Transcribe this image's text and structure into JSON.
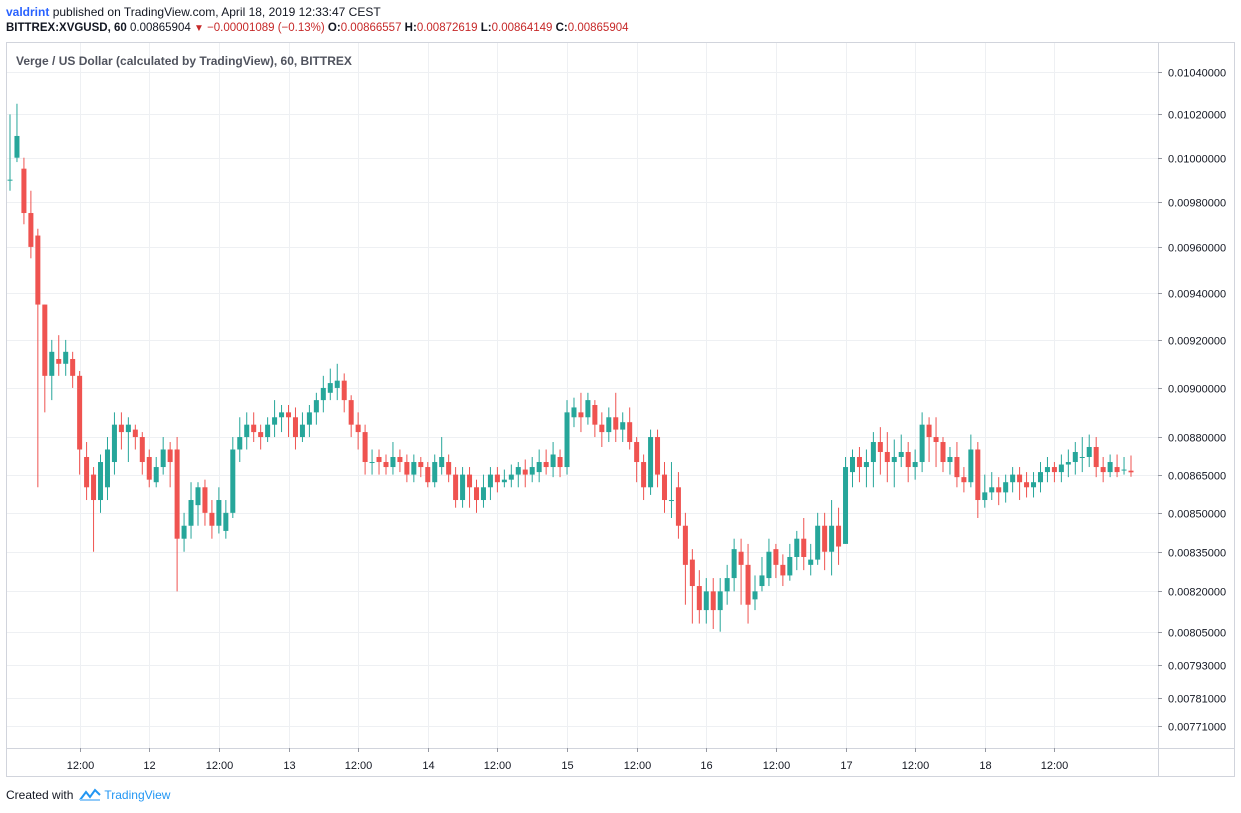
{
  "header": {
    "author": "valdrint",
    "published_text": "published on TradingView.com, April 18, 2019 12:33:47 CEST",
    "symbol": "BITTREX:XVGUSD, 60",
    "last_price": "0.00865904",
    "change": "−0.00001089 (−0.13%)",
    "open_label": "O:",
    "open": "0.00866557",
    "high_label": "H:",
    "high": "0.00872619",
    "low_label": "L:",
    "low": "0.00864149",
    "close_label": "C:",
    "close": "0.00865904"
  },
  "chart_title": "Verge / US Dollar (calculated by TradingView), 60, BITTREX",
  "footer": {
    "created_with": "Created with",
    "brand": "TradingView"
  },
  "colors": {
    "up": "#26a69a",
    "down": "#ef5350",
    "grid": "#eef0f3",
    "axis": "#9598a1"
  },
  "chart_data": {
    "type": "candlestick",
    "y_scale": "log",
    "y_ticks": [
      "0.01040000",
      "0.01020000",
      "0.01000000",
      "0.00980000",
      "0.00960000",
      "0.00940000",
      "0.00920000",
      "0.00900000",
      "0.00880000",
      "0.00865000",
      "0.00850000",
      "0.00835000",
      "0.00820000",
      "0.00805000",
      "0.00793000",
      "0.00781000",
      "0.00771000"
    ],
    "x_ticks": [
      "12:00",
      "12",
      "12:00",
      "13",
      "12:00",
      "14",
      "12:00",
      "15",
      "12:00",
      "16",
      "12:00",
      "17",
      "12:00",
      "18",
      "12:00"
    ],
    "x_tick_index": [
      10,
      20,
      30,
      40,
      50,
      60,
      70,
      80,
      90,
      100,
      110,
      120,
      130,
      140,
      150
    ],
    "candles": [
      [
        0.0099,
        0.0099,
        0.0102,
        0.00985
      ],
      [
        0.01,
        0.0101,
        0.01025,
        0.00998
      ],
      [
        0.00995,
        0.00975,
        0.01,
        0.0097
      ],
      [
        0.00975,
        0.0096,
        0.00985,
        0.00955
      ],
      [
        0.00965,
        0.00935,
        0.00968,
        0.0086
      ],
      [
        0.00935,
        0.00905,
        0.00935,
        0.0089
      ],
      [
        0.00905,
        0.00915,
        0.0092,
        0.00895
      ],
      [
        0.00912,
        0.0091,
        0.00922,
        0.00905
      ],
      [
        0.0091,
        0.00915,
        0.0092,
        0.00905
      ],
      [
        0.00912,
        0.00905,
        0.00915,
        0.009
      ],
      [
        0.00905,
        0.00875,
        0.00907,
        0.00865
      ],
      [
        0.00872,
        0.0086,
        0.00878,
        0.00855
      ],
      [
        0.00865,
        0.00855,
        0.00868,
        0.00835
      ],
      [
        0.00855,
        0.0087,
        0.00873,
        0.0085
      ],
      [
        0.0086,
        0.00875,
        0.0088,
        0.00855
      ],
      [
        0.0087,
        0.00885,
        0.0089,
        0.00865
      ],
      [
        0.00885,
        0.00882,
        0.0089,
        0.00875
      ],
      [
        0.00882,
        0.00885,
        0.00888,
        0.0087
      ],
      [
        0.00883,
        0.0088,
        0.00885,
        0.00875
      ],
      [
        0.0088,
        0.0087,
        0.00882,
        0.00865
      ],
      [
        0.00872,
        0.00863,
        0.00875,
        0.0086
      ],
      [
        0.00862,
        0.00868,
        0.00872,
        0.0086
      ],
      [
        0.00868,
        0.00875,
        0.0088,
        0.00865
      ],
      [
        0.00875,
        0.0087,
        0.00878,
        0.0086
      ],
      [
        0.00875,
        0.0084,
        0.0088,
        0.0082
      ],
      [
        0.0084,
        0.00845,
        0.0085,
        0.00835
      ],
      [
        0.00845,
        0.00855,
        0.00862,
        0.0084
      ],
      [
        0.00853,
        0.0086,
        0.00862,
        0.00845
      ],
      [
        0.0086,
        0.0085,
        0.00863,
        0.00845
      ],
      [
        0.0085,
        0.00845,
        0.00855,
        0.0084
      ],
      [
        0.00845,
        0.00855,
        0.0086,
        0.00842
      ],
      [
        0.00843,
        0.0085,
        0.00855,
        0.0084
      ],
      [
        0.0085,
        0.00875,
        0.0088,
        0.00848
      ],
      [
        0.00875,
        0.0088,
        0.00888,
        0.0087
      ],
      [
        0.0088,
        0.00885,
        0.0089,
        0.00875
      ],
      [
        0.00885,
        0.00882,
        0.0089,
        0.00878
      ],
      [
        0.00882,
        0.0088,
        0.00885,
        0.00875
      ],
      [
        0.0088,
        0.00885,
        0.00888,
        0.00878
      ],
      [
        0.00885,
        0.00888,
        0.00895,
        0.0088
      ],
      [
        0.00888,
        0.0089,
        0.00893,
        0.00882
      ],
      [
        0.0089,
        0.00888,
        0.00893,
        0.0088
      ],
      [
        0.00888,
        0.0088,
        0.00892,
        0.00875
      ],
      [
        0.0088,
        0.00885,
        0.0089,
        0.00878
      ],
      [
        0.00885,
        0.0089,
        0.00893,
        0.0088
      ],
      [
        0.0089,
        0.00895,
        0.00898,
        0.00885
      ],
      [
        0.00895,
        0.009,
        0.00905,
        0.0089
      ],
      [
        0.00898,
        0.00902,
        0.00908,
        0.00895
      ],
      [
        0.009,
        0.00903,
        0.0091,
        0.00895
      ],
      [
        0.00903,
        0.00895,
        0.00906,
        0.0089
      ],
      [
        0.00895,
        0.00885,
        0.00897,
        0.0088
      ],
      [
        0.00885,
        0.00882,
        0.0089,
        0.00875
      ],
      [
        0.00882,
        0.0087,
        0.00885,
        0.00865
      ],
      [
        0.0087,
        0.0087,
        0.00875,
        0.00865
      ],
      [
        0.00872,
        0.0087,
        0.00875,
        0.00865
      ],
      [
        0.0087,
        0.00868,
        0.00873,
        0.00865
      ],
      [
        0.00868,
        0.00872,
        0.00878,
        0.00865
      ],
      [
        0.00872,
        0.0087,
        0.00875,
        0.00866
      ],
      [
        0.0087,
        0.00865,
        0.00873,
        0.00862
      ],
      [
        0.00865,
        0.0087,
        0.00873,
        0.00862
      ],
      [
        0.0087,
        0.00868,
        0.00872,
        0.00864
      ],
      [
        0.00868,
        0.00862,
        0.0087,
        0.0086
      ],
      [
        0.00862,
        0.0087,
        0.00873,
        0.0086
      ],
      [
        0.00868,
        0.00872,
        0.0088,
        0.00865
      ],
      [
        0.0087,
        0.00865,
        0.00873,
        0.00862
      ],
      [
        0.00865,
        0.00855,
        0.00868,
        0.00852
      ],
      [
        0.00855,
        0.00865,
        0.00868,
        0.00852
      ],
      [
        0.00865,
        0.0086,
        0.00868,
        0.00852
      ],
      [
        0.0086,
        0.00855,
        0.00863,
        0.0085
      ],
      [
        0.00855,
        0.0086,
        0.00865,
        0.00852
      ],
      [
        0.0086,
        0.00865,
        0.00868,
        0.00855
      ],
      [
        0.00865,
        0.00862,
        0.00868,
        0.00858
      ],
      [
        0.00862,
        0.00863,
        0.00867,
        0.0086
      ],
      [
        0.00863,
        0.00865,
        0.00869,
        0.0086
      ],
      [
        0.00865,
        0.00868,
        0.0087,
        0.0086
      ],
      [
        0.00867,
        0.00865,
        0.00871,
        0.0086
      ],
      [
        0.00865,
        0.00868,
        0.00872,
        0.00862
      ],
      [
        0.00866,
        0.0087,
        0.00875,
        0.00862
      ],
      [
        0.0087,
        0.00868,
        0.00875,
        0.00865
      ],
      [
        0.00868,
        0.00873,
        0.00878,
        0.00864
      ],
      [
        0.00872,
        0.00868,
        0.00875,
        0.00864
      ],
      [
        0.00868,
        0.0089,
        0.00895,
        0.00865
      ],
      [
        0.00888,
        0.00892,
        0.00896,
        0.00884
      ],
      [
        0.0089,
        0.00888,
        0.00898,
        0.00882
      ],
      [
        0.00888,
        0.00895,
        0.00898,
        0.00885
      ],
      [
        0.00893,
        0.00885,
        0.00895,
        0.0088
      ],
      [
        0.00885,
        0.00882,
        0.0089,
        0.00876
      ],
      [
        0.00882,
        0.00888,
        0.00892,
        0.00878
      ],
      [
        0.00888,
        0.00883,
        0.00898,
        0.00878
      ],
      [
        0.00883,
        0.00886,
        0.0089,
        0.00878
      ],
      [
        0.00886,
        0.00878,
        0.00892,
        0.00875
      ],
      [
        0.00878,
        0.0087,
        0.0088,
        0.00862
      ],
      [
        0.0087,
        0.0086,
        0.00873,
        0.00855
      ],
      [
        0.0086,
        0.0088,
        0.00883,
        0.00857
      ],
      [
        0.0088,
        0.00865,
        0.00883,
        0.0086
      ],
      [
        0.00865,
        0.00855,
        0.0087,
        0.0085
      ],
      [
        0.00855,
        0.00855,
        0.0087,
        0.00848
      ],
      [
        0.0086,
        0.00845,
        0.00866,
        0.0084
      ],
      [
        0.00845,
        0.0083,
        0.0085,
        0.00815
      ],
      [
        0.00832,
        0.00822,
        0.00836,
        0.00808
      ],
      [
        0.00822,
        0.00813,
        0.00828,
        0.00808
      ],
      [
        0.00813,
        0.0082,
        0.00825,
        0.00808
      ],
      [
        0.0082,
        0.00813,
        0.00825,
        0.00806
      ],
      [
        0.00813,
        0.0082,
        0.00825,
        0.00805
      ],
      [
        0.0082,
        0.00825,
        0.0083,
        0.00815
      ],
      [
        0.00825,
        0.00836,
        0.0084,
        0.0082
      ],
      [
        0.00835,
        0.0083,
        0.0084,
        0.00815
      ],
      [
        0.0083,
        0.00815,
        0.00838,
        0.00808
      ],
      [
        0.00817,
        0.0082,
        0.00826,
        0.00813
      ],
      [
        0.00822,
        0.00826,
        0.00833,
        0.0082
      ],
      [
        0.00825,
        0.00835,
        0.0084,
        0.00822
      ],
      [
        0.00836,
        0.0083,
        0.00838,
        0.00825
      ],
      [
        0.0083,
        0.00826,
        0.00834,
        0.00822
      ],
      [
        0.00826,
        0.00833,
        0.00838,
        0.00824
      ],
      [
        0.00833,
        0.0084,
        0.00843,
        0.00828
      ],
      [
        0.0084,
        0.00833,
        0.00848,
        0.00828
      ],
      [
        0.0083,
        0.00832,
        0.00838,
        0.00826
      ],
      [
        0.00832,
        0.00845,
        0.0085,
        0.0083
      ],
      [
        0.00845,
        0.00835,
        0.0085,
        0.00828
      ],
      [
        0.00835,
        0.00845,
        0.00855,
        0.00826
      ],
      [
        0.00845,
        0.00837,
        0.00852,
        0.0083
      ],
      [
        0.00838,
        0.00868,
        0.00872,
        0.00838
      ],
      [
        0.00866,
        0.00872,
        0.00875,
        0.0086
      ],
      [
        0.00872,
        0.00868,
        0.00876,
        0.00862
      ],
      [
        0.00868,
        0.0087,
        0.00875,
        0.0086
      ],
      [
        0.0087,
        0.00878,
        0.00882,
        0.0086
      ],
      [
        0.00878,
        0.00874,
        0.00884,
        0.00865
      ],
      [
        0.00874,
        0.0087,
        0.00882,
        0.00862
      ],
      [
        0.0087,
        0.00872,
        0.00879,
        0.0086
      ],
      [
        0.00872,
        0.00874,
        0.00881,
        0.00868
      ],
      [
        0.00874,
        0.00868,
        0.00878,
        0.00862
      ],
      [
        0.00868,
        0.0087,
        0.00875,
        0.00863
      ],
      [
        0.0087,
        0.00885,
        0.0089,
        0.00866
      ],
      [
        0.00885,
        0.0088,
        0.00888,
        0.0087
      ],
      [
        0.0088,
        0.00878,
        0.00888,
        0.00868
      ],
      [
        0.00878,
        0.0087,
        0.0088,
        0.00866
      ],
      [
        0.0087,
        0.00872,
        0.00876,
        0.00865
      ],
      [
        0.00872,
        0.00864,
        0.00878,
        0.0086
      ],
      [
        0.00864,
        0.00862,
        0.00868,
        0.00858
      ],
      [
        0.00862,
        0.00875,
        0.00881,
        0.0086
      ],
      [
        0.00875,
        0.00855,
        0.00878,
        0.00848
      ],
      [
        0.00855,
        0.00858,
        0.00865,
        0.00852
      ],
      [
        0.00858,
        0.0086,
        0.00866,
        0.00855
      ],
      [
        0.0086,
        0.00858,
        0.00864,
        0.00853
      ],
      [
        0.00858,
        0.00862,
        0.00865,
        0.00854
      ],
      [
        0.00862,
        0.00865,
        0.00868,
        0.00858
      ],
      [
        0.00865,
        0.00862,
        0.00868,
        0.00855
      ],
      [
        0.00862,
        0.0086,
        0.00866,
        0.00856
      ],
      [
        0.0086,
        0.00862,
        0.00866,
        0.00856
      ],
      [
        0.00862,
        0.00866,
        0.0087,
        0.00858
      ],
      [
        0.00866,
        0.00868,
        0.00872,
        0.00862
      ],
      [
        0.00868,
        0.00866,
        0.0087,
        0.00862
      ],
      [
        0.00866,
        0.00869,
        0.00873,
        0.00862
      ],
      [
        0.00869,
        0.0087,
        0.00875,
        0.00864
      ],
      [
        0.0087,
        0.00874,
        0.00878,
        0.00865
      ],
      [
        0.00872,
        0.00872,
        0.0088,
        0.00866
      ],
      [
        0.00872,
        0.00876,
        0.00881,
        0.00868
      ],
      [
        0.00876,
        0.00868,
        0.0088,
        0.00864
      ],
      [
        0.00868,
        0.00866,
        0.00872,
        0.00862
      ],
      [
        0.00866,
        0.0087,
        0.00873,
        0.00864
      ],
      [
        0.00868,
        0.00866,
        0.00873,
        0.00864
      ],
      [
        0.00867,
        0.00867,
        0.00872,
        0.00865
      ],
      [
        0.00866557,
        0.00865904,
        0.00872619,
        0.00864149
      ]
    ]
  }
}
